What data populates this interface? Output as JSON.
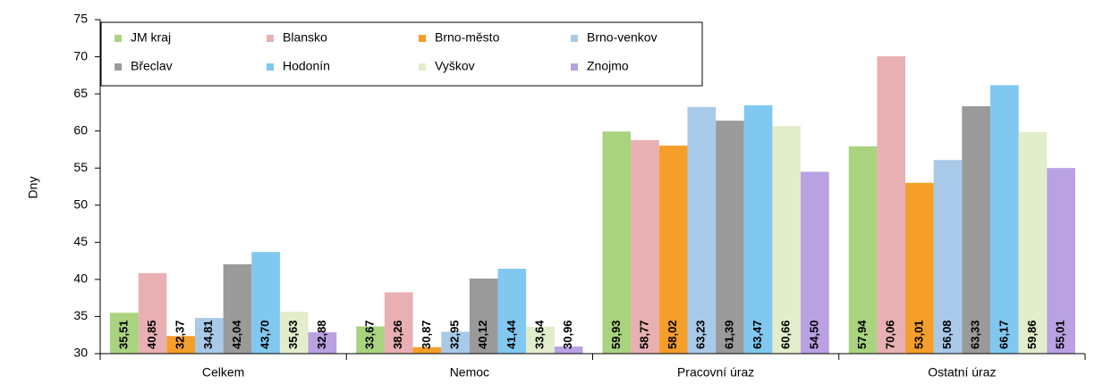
{
  "chart_data": {
    "type": "bar",
    "y_label": "Dny",
    "categories": [
      "Celkem",
      "Nemoc",
      "Pracovní úraz",
      "Ostatní úraz"
    ],
    "series": [
      {
        "name": "JM kraj",
        "color": "#a9d37f",
        "values": [
          35.51,
          33.67,
          59.93,
          57.94
        ],
        "value_labels": [
          "35,51",
          "33,67",
          "59,93",
          "57,94"
        ]
      },
      {
        "name": "Blansko",
        "color": "#e8b0b2",
        "values": [
          40.85,
          38.26,
          58.77,
          70.06
        ],
        "value_labels": [
          "40,85",
          "38,26",
          "58,77",
          "70,06"
        ]
      },
      {
        "name": "Brno-město",
        "color": "#f59e2a",
        "values": [
          32.37,
          30.87,
          58.02,
          53.01
        ],
        "value_labels": [
          "32,37",
          "30,87",
          "58,02",
          "53,01"
        ]
      },
      {
        "name": "Brno-venkov",
        "color": "#a8cae8",
        "values": [
          34.81,
          32.95,
          63.23,
          56.08
        ],
        "value_labels": [
          "34,81",
          "32,95",
          "63,23",
          "56,08"
        ]
      },
      {
        "name": "Břeclav",
        "color": "#9a9a9a",
        "values": [
          42.04,
          40.12,
          61.39,
          63.33
        ],
        "value_labels": [
          "42,04",
          "40,12",
          "61,39",
          "63,33"
        ]
      },
      {
        "name": "Hodonín",
        "color": "#80c8f0",
        "values": [
          43.7,
          41.44,
          63.47,
          66.17
        ],
        "value_labels": [
          "43,70",
          "41,44",
          "63,47",
          "66,17"
        ]
      },
      {
        "name": "Vyškov",
        "color": "#e2edcb",
        "values": [
          35.63,
          33.64,
          60.66,
          59.86
        ],
        "value_labels": [
          "35,63",
          "33,64",
          "60,66",
          "59,86"
        ]
      },
      {
        "name": "Znojmo",
        "color": "#b9a1e2",
        "values": [
          32.88,
          30.96,
          54.5,
          55.01
        ],
        "value_labels": [
          "32,88",
          "30,96",
          "54,50",
          "55,01"
        ]
      }
    ],
    "ylim": [
      30,
      75
    ],
    "yticks": [
      30,
      35,
      40,
      45,
      50,
      55,
      60,
      65,
      70,
      75
    ],
    "grid": false,
    "legend": "top-left"
  }
}
